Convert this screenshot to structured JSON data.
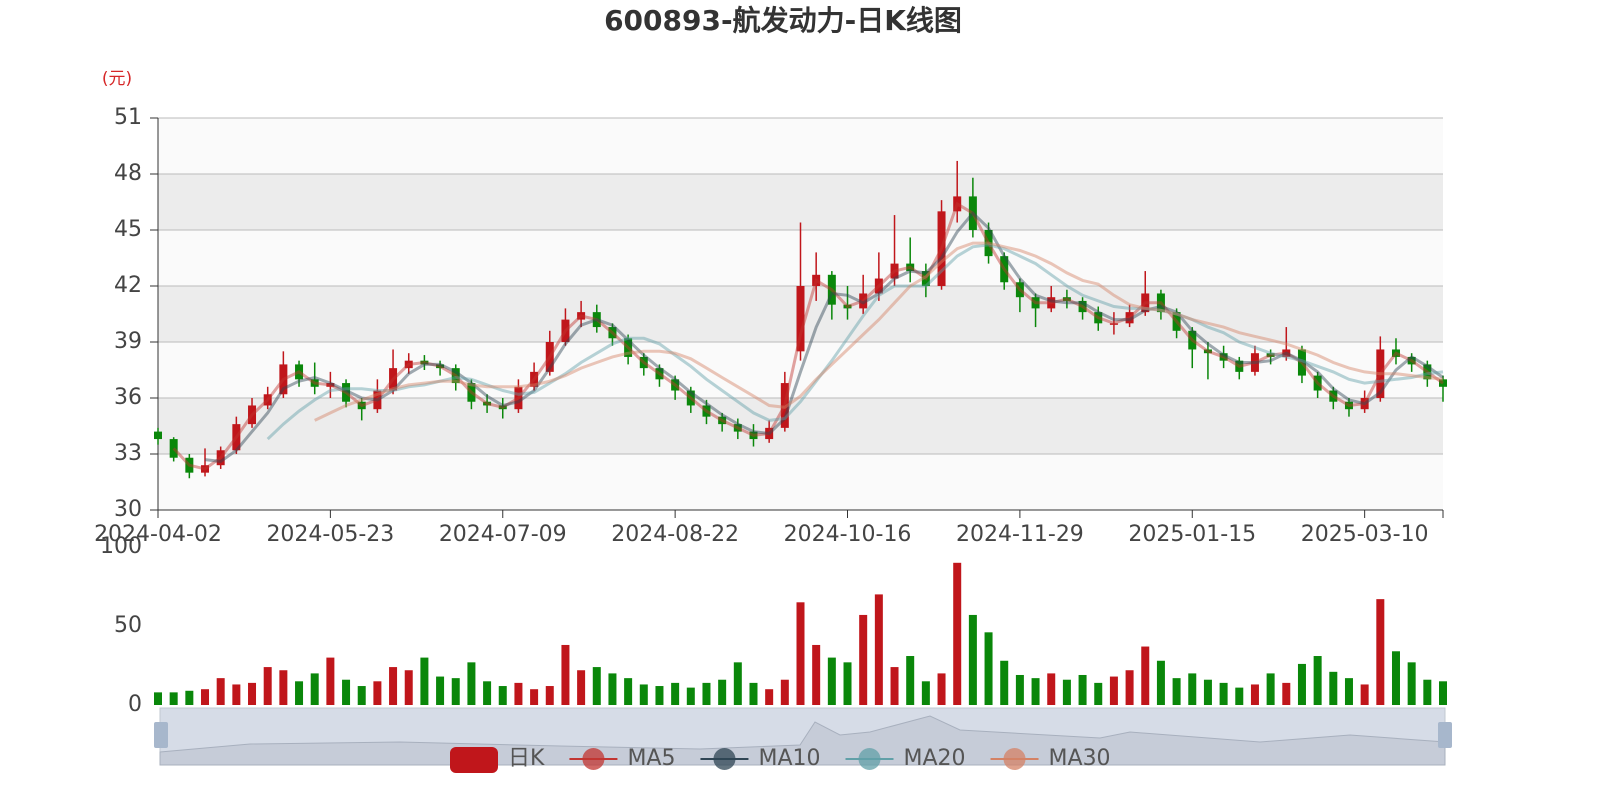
{
  "chart_data": {
    "type": "candlestick",
    "title": "600893-航发动力-日K线图",
    "y_unit": "(元)",
    "candle_name": "日K",
    "up_color": "#c0161b",
    "down_color": "#0a870a",
    "ylim": [
      30,
      51
    ],
    "yticks": [
      30,
      33,
      36,
      39,
      42,
      45,
      48,
      51
    ],
    "volume_ylim": [
      0,
      100
    ],
    "volume_yticks": [
      0,
      50,
      100
    ],
    "categories": [
      "2024-04-02",
      null,
      null,
      null,
      null,
      null,
      null,
      null,
      null,
      null,
      null,
      "2024-05-23",
      null,
      null,
      null,
      null,
      null,
      null,
      null,
      null,
      null,
      null,
      "2024-07-09",
      null,
      null,
      null,
      null,
      null,
      null,
      null,
      null,
      null,
      null,
      "2024-08-22",
      null,
      null,
      null,
      null,
      null,
      null,
      null,
      null,
      null,
      null,
      "2024-10-16",
      null,
      null,
      null,
      null,
      null,
      null,
      null,
      null,
      null,
      null,
      "2024-11-29",
      null,
      null,
      null,
      null,
      null,
      null,
      null,
      null,
      null,
      null,
      "2025-01-15",
      null,
      null,
      null,
      null,
      null,
      null,
      null,
      null,
      null,
      null,
      "2025-03-10",
      null,
      null,
      null,
      null,
      null
    ],
    "candles": [
      [
        34.2,
        33.8,
        33.5,
        34.4
      ],
      [
        33.8,
        32.8,
        32.6,
        33.9
      ],
      [
        32.8,
        32.0,
        31.7,
        33.0
      ],
      [
        32.0,
        32.4,
        31.8,
        33.3
      ],
      [
        32.4,
        33.2,
        32.2,
        33.4
      ],
      [
        33.2,
        34.6,
        33.0,
        35.0
      ],
      [
        34.6,
        35.6,
        34.4,
        36.0
      ],
      [
        35.6,
        36.2,
        35.4,
        36.6
      ],
      [
        36.2,
        37.8,
        36.0,
        38.5
      ],
      [
        37.8,
        37.0,
        36.6,
        38.0
      ],
      [
        37.0,
        36.6,
        36.2,
        37.9
      ],
      [
        36.6,
        36.8,
        36.0,
        37.4
      ],
      [
        36.8,
        35.8,
        35.5,
        37.0
      ],
      [
        35.8,
        35.4,
        34.8,
        36.0
      ],
      [
        35.4,
        36.4,
        35.2,
        37.0
      ],
      [
        36.4,
        37.6,
        36.2,
        38.6
      ],
      [
        37.6,
        38.0,
        37.3,
        38.4
      ],
      [
        38.0,
        37.8,
        37.5,
        38.3
      ],
      [
        37.8,
        37.6,
        37.2,
        38.0
      ],
      [
        37.6,
        36.8,
        36.4,
        37.8
      ],
      [
        36.8,
        35.8,
        35.4,
        37.0
      ],
      [
        35.8,
        35.6,
        35.2,
        36.2
      ],
      [
        35.6,
        35.4,
        34.9,
        36.0
      ],
      [
        35.4,
        36.6,
        35.2,
        37.0
      ],
      [
        36.6,
        37.4,
        36.4,
        37.9
      ],
      [
        37.4,
        39.0,
        37.2,
        39.6
      ],
      [
        39.0,
        40.2,
        38.8,
        40.8
      ],
      [
        40.2,
        40.6,
        39.8,
        41.2
      ],
      [
        40.6,
        39.8,
        39.5,
        41.0
      ],
      [
        39.8,
        39.2,
        38.8,
        40.0
      ],
      [
        39.2,
        38.2,
        37.8,
        39.4
      ],
      [
        38.2,
        37.6,
        37.2,
        38.4
      ],
      [
        37.6,
        37.0,
        36.6,
        37.8
      ],
      [
        37.0,
        36.4,
        35.9,
        37.2
      ],
      [
        36.4,
        35.6,
        35.2,
        36.6
      ],
      [
        35.6,
        35.0,
        34.6,
        35.9
      ],
      [
        35.0,
        34.6,
        34.2,
        35.2
      ],
      [
        34.6,
        34.2,
        33.8,
        34.9
      ],
      [
        34.2,
        33.8,
        33.4,
        34.6
      ],
      [
        33.8,
        34.4,
        33.6,
        34.8
      ],
      [
        34.4,
        36.8,
        34.2,
        37.4
      ],
      [
        38.5,
        42.0,
        38.0,
        45.4
      ],
      [
        42.0,
        42.6,
        41.2,
        43.8
      ],
      [
        42.6,
        41.0,
        40.2,
        42.8
      ],
      [
        41.0,
        40.8,
        40.2,
        42.0
      ],
      [
        40.8,
        41.6,
        40.5,
        42.6
      ],
      [
        41.6,
        42.4,
        41.2,
        43.8
      ],
      [
        42.4,
        43.2,
        42.0,
        45.8
      ],
      [
        43.2,
        42.8,
        42.2,
        44.6
      ],
      [
        42.8,
        42.0,
        41.4,
        43.2
      ],
      [
        42.0,
        46.0,
        41.8,
        46.6
      ],
      [
        46.0,
        46.8,
        45.4,
        48.7
      ],
      [
        46.8,
        45.0,
        44.6,
        47.8
      ],
      [
        45.0,
        43.6,
        43.2,
        45.4
      ],
      [
        43.6,
        42.2,
        41.8,
        43.8
      ],
      [
        42.2,
        41.4,
        40.6,
        42.4
      ],
      [
        41.4,
        40.8,
        39.8,
        41.6
      ],
      [
        40.8,
        41.4,
        40.6,
        42.0
      ],
      [
        41.4,
        41.2,
        40.8,
        41.8
      ],
      [
        41.2,
        40.6,
        40.2,
        41.4
      ],
      [
        40.6,
        40.0,
        39.6,
        40.9
      ],
      [
        40.0,
        40.0,
        39.4,
        40.6
      ],
      [
        40.0,
        40.6,
        39.8,
        41.0
      ],
      [
        40.6,
        41.6,
        40.4,
        42.8
      ],
      [
        41.6,
        40.6,
        40.2,
        41.8
      ],
      [
        40.6,
        39.6,
        39.2,
        40.8
      ],
      [
        39.6,
        38.6,
        37.6,
        39.8
      ],
      [
        38.6,
        38.4,
        37.0,
        39.0
      ],
      [
        38.4,
        38.0,
        37.6,
        38.8
      ],
      [
        38.0,
        37.4,
        37.0,
        38.2
      ],
      [
        37.4,
        38.4,
        37.2,
        38.8
      ],
      [
        38.4,
        38.2,
        37.8,
        38.6
      ],
      [
        38.2,
        38.6,
        38.0,
        39.8
      ],
      [
        38.6,
        37.2,
        36.8,
        38.8
      ],
      [
        37.2,
        36.4,
        36.0,
        37.4
      ],
      [
        36.4,
        35.8,
        35.4,
        36.6
      ],
      [
        35.8,
        35.4,
        35.0,
        36.0
      ],
      [
        35.4,
        36.0,
        35.2,
        36.4
      ],
      [
        36.0,
        38.6,
        35.8,
        39.3
      ],
      [
        38.6,
        38.2,
        37.8,
        39.2
      ],
      [
        38.2,
        37.8,
        37.4,
        38.4
      ],
      [
        37.8,
        37.0,
        36.6,
        38.0
      ],
      [
        37.0,
        36.6,
        35.8,
        37.2
      ]
    ],
    "volumes": [
      8,
      8,
      9,
      10,
      17,
      13,
      14,
      24,
      22,
      15,
      20,
      30,
      16,
      12,
      15,
      24,
      22,
      30,
      18,
      17,
      27,
      15,
      12,
      14,
      10,
      12,
      38,
      22,
      24,
      20,
      17,
      13,
      12,
      14,
      11,
      14,
      16,
      27,
      14,
      10,
      16,
      65,
      38,
      30,
      27,
      57,
      70,
      24,
      31,
      15,
      20,
      90,
      57,
      46,
      28,
      19,
      17,
      20,
      16,
      19,
      14,
      18,
      22,
      37,
      28,
      17,
      20,
      16,
      14,
      11,
      13,
      20,
      14,
      26,
      31,
      21,
      17,
      13,
      67,
      34,
      27,
      16,
      15
    ],
    "series": [
      {
        "name": "MA5",
        "color": "#c23531",
        "values": [
          null,
          33.3,
          32.4,
          32.2,
          32.8,
          33.9,
          35.1,
          35.9,
          37.0,
          37.4,
          36.8,
          36.7,
          36.3,
          35.6,
          35.9,
          37.0,
          37.8,
          37.9,
          37.7,
          37.2,
          36.3,
          35.7,
          35.5,
          36.0,
          37.0,
          38.2,
          39.6,
          40.4,
          40.2,
          39.5,
          38.7,
          37.9,
          37.3,
          36.7,
          36.0,
          35.3,
          34.8,
          34.4,
          34.0,
          34.1,
          35.6,
          39.4,
          42.3,
          41.8,
          40.9,
          41.2,
          42.0,
          42.8,
          43.0,
          42.4,
          44.0,
          46.4,
          45.9,
          44.3,
          42.9,
          41.8,
          41.1,
          41.1,
          41.3,
          40.9,
          40.3,
          40.0,
          40.3,
          41.1,
          41.1,
          40.1,
          39.1,
          38.5,
          38.2,
          37.7,
          37.9,
          38.3,
          38.4,
          37.9,
          36.8,
          36.1,
          35.6,
          35.7,
          37.3,
          38.4,
          38.0,
          37.4,
          36.8
        ]
      },
      {
        "name": "MA10",
        "color": "#2f4554",
        "values": [
          null,
          null,
          null,
          32.7,
          32.6,
          33.2,
          34.2,
          35.2,
          36.5,
          36.9,
          37.1,
          36.8,
          36.4,
          36.0,
          35.9,
          36.4,
          37.3,
          37.8,
          37.8,
          37.4,
          36.8,
          36.1,
          35.6,
          35.8,
          36.4,
          37.6,
          38.9,
          39.9,
          40.2,
          39.9,
          39.1,
          38.3,
          37.6,
          37.0,
          36.3,
          35.7,
          35.1,
          34.6,
          34.2,
          34.1,
          34.9,
          37.4,
          39.8,
          41.6,
          41.5,
          41.1,
          41.6,
          42.4,
          42.8,
          42.7,
          43.5,
          44.9,
          45.9,
          45.1,
          43.6,
          42.4,
          41.5,
          41.2,
          41.1,
          41.1,
          40.6,
          40.2,
          40.2,
          40.7,
          40.9,
          40.6,
          39.6,
          38.9,
          38.3,
          37.9,
          37.9,
          38.0,
          38.4,
          38.0,
          37.4,
          36.5,
          35.9,
          35.7,
          36.3,
          37.5,
          38.2,
          37.7,
          37.1
        ]
      },
      {
        "name": "MA20",
        "color": "#61a0a8",
        "values": [
          null,
          null,
          null,
          null,
          null,
          null,
          null,
          33.8,
          34.6,
          35.3,
          35.9,
          36.4,
          36.5,
          36.5,
          36.4,
          36.4,
          36.6,
          36.7,
          36.9,
          37.1,
          37.0,
          36.7,
          36.4,
          36.2,
          36.3,
          36.8,
          37.3,
          37.9,
          38.4,
          38.9,
          39.2,
          39.2,
          38.9,
          38.3,
          37.7,
          37.0,
          36.4,
          35.8,
          35.2,
          34.8,
          34.9,
          35.8,
          36.9,
          38.0,
          39.2,
          40.4,
          41.5,
          42.0,
          42.0,
          42.0,
          42.8,
          43.6,
          44.1,
          44.2,
          44.0,
          43.6,
          43.2,
          42.6,
          42.0,
          41.5,
          41.2,
          40.9,
          40.8,
          40.8,
          40.7,
          40.5,
          40.2,
          39.8,
          39.5,
          39.0,
          38.7,
          38.4,
          38.2,
          38.0,
          37.7,
          37.4,
          37.0,
          36.8,
          36.9,
          37.0,
          37.1,
          37.3,
          37.4
        ]
      },
      {
        "name": "MA30",
        "color": "#d48265",
        "values": [
          null,
          null,
          null,
          null,
          null,
          null,
          null,
          null,
          null,
          null,
          34.8,
          35.2,
          35.6,
          35.9,
          36.2,
          36.5,
          36.7,
          36.8,
          36.9,
          36.9,
          36.7,
          36.6,
          36.6,
          36.6,
          36.7,
          36.9,
          37.2,
          37.6,
          37.9,
          38.2,
          38.4,
          38.5,
          38.5,
          38.4,
          38.1,
          37.6,
          37.1,
          36.6,
          36.1,
          35.6,
          35.5,
          36.1,
          37.0,
          37.8,
          38.6,
          39.4,
          40.2,
          41.1,
          42.0,
          42.5,
          43.3,
          44.0,
          44.3,
          44.3,
          44.1,
          43.9,
          43.6,
          43.2,
          42.7,
          42.3,
          42.1,
          41.5,
          41.0,
          40.8,
          40.7,
          40.5,
          40.2,
          40.0,
          39.8,
          39.5,
          39.3,
          39.1,
          38.9,
          38.6,
          38.3,
          37.9,
          37.6,
          37.4,
          37.3,
          37.3,
          37.2,
          37.1,
          37.0
        ]
      }
    ]
  }
}
